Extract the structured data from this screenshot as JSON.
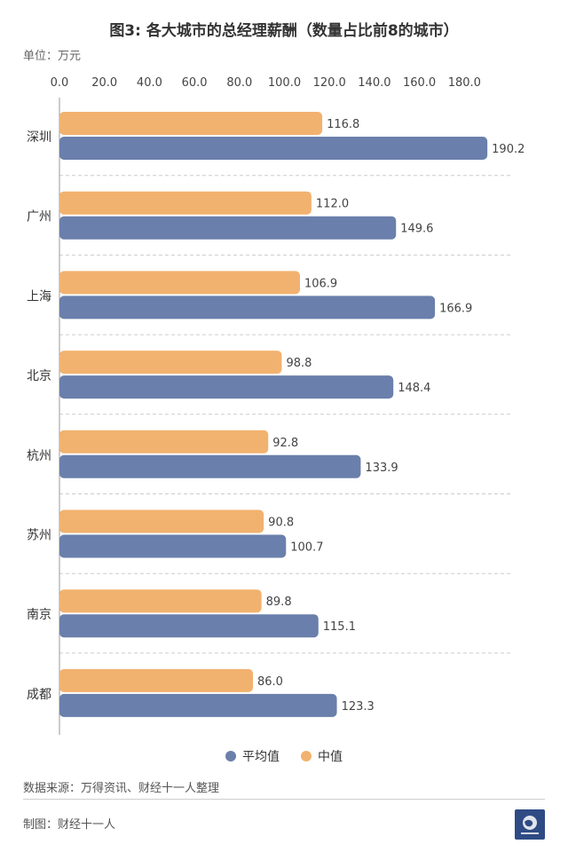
{
  "header": {
    "title": "图3: 各大城市的总经理薪酬（数量占比前8的城市）",
    "unit": "单位：万元"
  },
  "footer": {
    "source": "数据来源：万得资讯、财经十一人整理",
    "maker": "制图：财经十一人"
  },
  "colors": {
    "average": "#6a7fab",
    "median": "#f2b26f",
    "grid": "#cccccc",
    "axis": "#999999"
  },
  "chart_data": {
    "type": "bar",
    "orientation": "horizontal",
    "categories": [
      "深圳",
      "广州",
      "上海",
      "北京",
      "杭州",
      "苏州",
      "南京",
      "成都"
    ],
    "series": [
      {
        "name": "中值",
        "color": "#f2b26f",
        "values": [
          116.8,
          112.0,
          106.9,
          98.8,
          92.8,
          90.8,
          89.8,
          86.0
        ]
      },
      {
        "name": "平均值",
        "color": "#6a7fab",
        "values": [
          190.2,
          149.6,
          166.9,
          148.4,
          133.9,
          100.7,
          115.1,
          123.3
        ]
      }
    ],
    "value_labels": {
      "中值": [
        "116.8",
        "112.0",
        "106.9",
        "98.8",
        "92.8",
        "90.8",
        "89.8",
        "86.0"
      ],
      "平均值": [
        "190.2",
        "149.6",
        "166.9",
        "148.4",
        "133.9",
        "100.7",
        "115.1",
        "123.3"
      ]
    },
    "x_ticks": [
      "0.0",
      "20.0",
      "40.0",
      "60.0",
      "80.0",
      "100.0",
      "120.0",
      "140.0",
      "160.0",
      "180.0"
    ],
    "xlim": [
      0,
      200
    ],
    "x_axis_position": "top",
    "grid": "dashed separators between categories",
    "legend": {
      "position": "bottom-center",
      "entries": [
        {
          "label": "平均值",
          "color": "#6a7fab"
        },
        {
          "label": "中值",
          "color": "#f2b26f"
        }
      ]
    }
  }
}
